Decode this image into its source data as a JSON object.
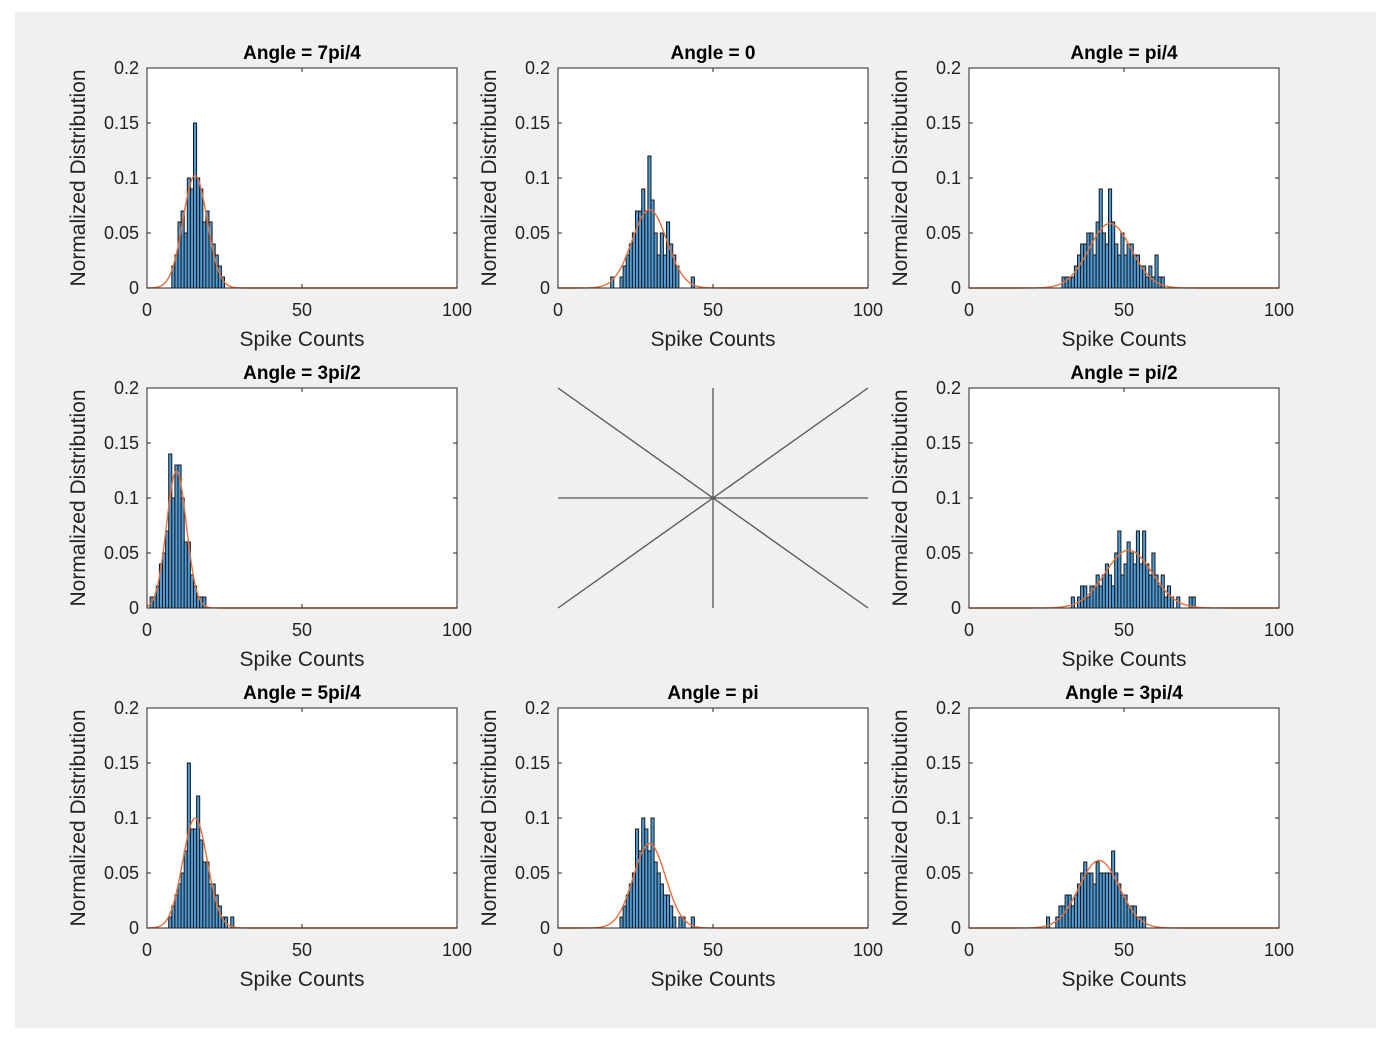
{
  "colors": {
    "figure_background": "#f0f0f0",
    "axes_background": "#ffffff",
    "bar_fill": "#4d9bd6",
    "bar_edge": "#1a1a1a",
    "fit_line": "#e8703a",
    "compass_lines": "#555555"
  },
  "compass": {
    "type": "diagram",
    "lines": [
      "0",
      "pi/4",
      "pi/2",
      "3pi/4",
      "pi",
      "5pi/4",
      "3pi/2",
      "7pi/4"
    ]
  },
  "chart_data": [
    {
      "type": "bar",
      "title": "Angle = 7pi/4",
      "xlabel": "Spike Counts",
      "ylabel": "Normalized Distribution",
      "xlim": [
        0,
        100
      ],
      "ylim": [
        0,
        0.2
      ],
      "xticks": [
        "0",
        "50",
        "100"
      ],
      "yticks": [
        "0",
        "0.05",
        "0.1",
        "0.15",
        "0.2"
      ],
      "grid": false,
      "bin_width": 1,
      "bin_start": 8,
      "bin_values": [
        0.02,
        0.03,
        0.06,
        0.07,
        0.05,
        0.1,
        0.09,
        0.15,
        0.1,
        0.09,
        0.06,
        0.07,
        0.06,
        0.04,
        0.03,
        0.02,
        0.01
      ],
      "fit": {
        "mean": 15.5,
        "sd": 3.9
      }
    },
    {
      "type": "bar",
      "title": "Angle = 0",
      "xlabel": "Spike Counts",
      "ylabel": "Normalized Distribution",
      "xlim": [
        0,
        100
      ],
      "ylim": [
        0,
        0.2
      ],
      "xticks": [
        "0",
        "50",
        "100"
      ],
      "yticks": [
        "0",
        "0.05",
        "0.1",
        "0.15",
        "0.2"
      ],
      "grid": false,
      "bin_width": 1,
      "bin_start": 17,
      "bin_values": [
        0.01,
        0.0,
        0.0,
        0.01,
        0.02,
        0.03,
        0.04,
        0.05,
        0.07,
        0.07,
        0.09,
        0.07,
        0.12,
        0.08,
        0.05,
        0.03,
        0.05,
        0.03,
        0.06,
        0.04,
        0.03,
        0.02,
        0.0,
        0.0,
        0.0,
        0.0,
        0.01
      ],
      "fit": {
        "mean": 29.5,
        "sd": 5.6
      }
    },
    {
      "type": "bar",
      "title": "Angle = pi/4",
      "xlabel": "Spike Counts",
      "ylabel": "Normalized Distribution",
      "xlim": [
        0,
        100
      ],
      "ylim": [
        0,
        0.2
      ],
      "xticks": [
        "0",
        "50",
        "100"
      ],
      "yticks": [
        "0",
        "0.05",
        "0.1",
        "0.15",
        "0.2"
      ],
      "grid": false,
      "bin_width": 1,
      "bin_start": 30,
      "bin_values": [
        0.01,
        0.01,
        0.01,
        0.01,
        0.02,
        0.03,
        0.04,
        0.04,
        0.05,
        0.05,
        0.03,
        0.06,
        0.09,
        0.05,
        0.04,
        0.09,
        0.06,
        0.04,
        0.03,
        0.05,
        0.03,
        0.04,
        0.04,
        0.03,
        0.03,
        0.02,
        0.02,
        0.01,
        0.02,
        0.01,
        0.03,
        0.01,
        0.01
      ],
      "fit": {
        "mean": 45.5,
        "sd": 6.8
      }
    },
    {
      "type": "bar",
      "title": "Angle = 3pi/2",
      "xlabel": "Spike Counts",
      "ylabel": "Normalized Distribution",
      "xlim": [
        0,
        100
      ],
      "ylim": [
        0,
        0.2
      ],
      "xticks": [
        "0",
        "50",
        "100"
      ],
      "yticks": [
        "0",
        "0.05",
        "0.1",
        "0.15",
        "0.2"
      ],
      "grid": false,
      "bin_width": 1,
      "bin_start": 1,
      "bin_values": [
        0.01,
        0.01,
        0.02,
        0.04,
        0.05,
        0.07,
        0.14,
        0.1,
        0.13,
        0.13,
        0.1,
        0.06,
        0.06,
        0.03,
        0.02,
        0.01,
        0.01,
        0.01
      ],
      "fit": {
        "mean": 9.5,
        "sd": 3.2
      }
    },
    "compass",
    {
      "type": "bar",
      "title": "Angle = pi/2",
      "xlabel": "Spike Counts",
      "ylabel": "Normalized Distribution",
      "xlim": [
        0,
        100
      ],
      "ylim": [
        0,
        0.2
      ],
      "xticks": [
        "0",
        "50",
        "100"
      ],
      "yticks": [
        "0",
        "0.05",
        "0.1",
        "0.15",
        "0.2"
      ],
      "grid": false,
      "bin_width": 1,
      "bin_start": 33,
      "bin_values": [
        0.01,
        0.0,
        0.01,
        0.02,
        0.02,
        0.01,
        0.02,
        0.02,
        0.03,
        0.02,
        0.03,
        0.04,
        0.03,
        0.02,
        0.05,
        0.07,
        0.03,
        0.04,
        0.06,
        0.05,
        0.04,
        0.07,
        0.04,
        0.07,
        0.04,
        0.03,
        0.05,
        0.03,
        0.02,
        0.03,
        0.01,
        0.02,
        0.01,
        0.0,
        0.01,
        0.0,
        0.0,
        0.0,
        0.01,
        0.01
      ],
      "fit": {
        "mean": 51.5,
        "sd": 7.6
      }
    },
    {
      "type": "bar",
      "title": "Angle = 5pi/4",
      "xlabel": "Spike Counts",
      "ylabel": "Normalized Distribution",
      "xlim": [
        0,
        100
      ],
      "ylim": [
        0,
        0.2
      ],
      "xticks": [
        "0",
        "50",
        "100"
      ],
      "yticks": [
        "0",
        "0.05",
        "0.1",
        "0.15",
        "0.2"
      ],
      "grid": false,
      "bin_width": 1,
      "bin_start": 7,
      "bin_values": [
        0.01,
        0.02,
        0.03,
        0.04,
        0.05,
        0.07,
        0.15,
        0.09,
        0.09,
        0.12,
        0.08,
        0.06,
        0.06,
        0.04,
        0.04,
        0.03,
        0.02,
        0.01,
        0.01,
        0.0,
        0.01
      ],
      "fit": {
        "mean": 15.5,
        "sd": 4.0
      }
    },
    {
      "type": "bar",
      "title": "Angle = pi",
      "xlabel": "Spike Counts",
      "ylabel": "Normalized Distribution",
      "xlim": [
        0,
        100
      ],
      "ylim": [
        0,
        0.2
      ],
      "xticks": [
        "0",
        "50",
        "100"
      ],
      "yticks": [
        "0",
        "0.05",
        "0.1",
        "0.15",
        "0.2"
      ],
      "grid": false,
      "bin_width": 1,
      "bin_start": 20,
      "bin_values": [
        0.01,
        0.02,
        0.03,
        0.04,
        0.05,
        0.09,
        0.07,
        0.1,
        0.09,
        0.07,
        0.1,
        0.06,
        0.05,
        0.04,
        0.03,
        0.03,
        0.02,
        0.01,
        0.0,
        0.01,
        0.01,
        0.0,
        0.0,
        0.01
      ],
      "fit": {
        "mean": 29.5,
        "sd": 5.2
      }
    },
    {
      "type": "bar",
      "title": "Angle = 3pi/4",
      "xlabel": "Spike Counts",
      "ylabel": "Normalized Distribution",
      "xlim": [
        0,
        100
      ],
      "ylim": [
        0,
        0.2
      ],
      "xticks": [
        "0",
        "50",
        "100"
      ],
      "yticks": [
        "0",
        "0.05",
        "0.1",
        "0.15",
        "0.2"
      ],
      "grid": false,
      "bin_width": 1,
      "bin_start": 25,
      "bin_values": [
        0.01,
        0.0,
        0.0,
        0.01,
        0.02,
        0.02,
        0.03,
        0.03,
        0.02,
        0.03,
        0.04,
        0.05,
        0.06,
        0.05,
        0.05,
        0.04,
        0.06,
        0.05,
        0.05,
        0.05,
        0.05,
        0.07,
        0.05,
        0.04,
        0.03,
        0.03,
        0.02,
        0.02,
        0.02,
        0.01,
        0.01,
        0.01
      ],
      "fit": {
        "mean": 42.0,
        "sd": 6.5
      }
    }
  ]
}
